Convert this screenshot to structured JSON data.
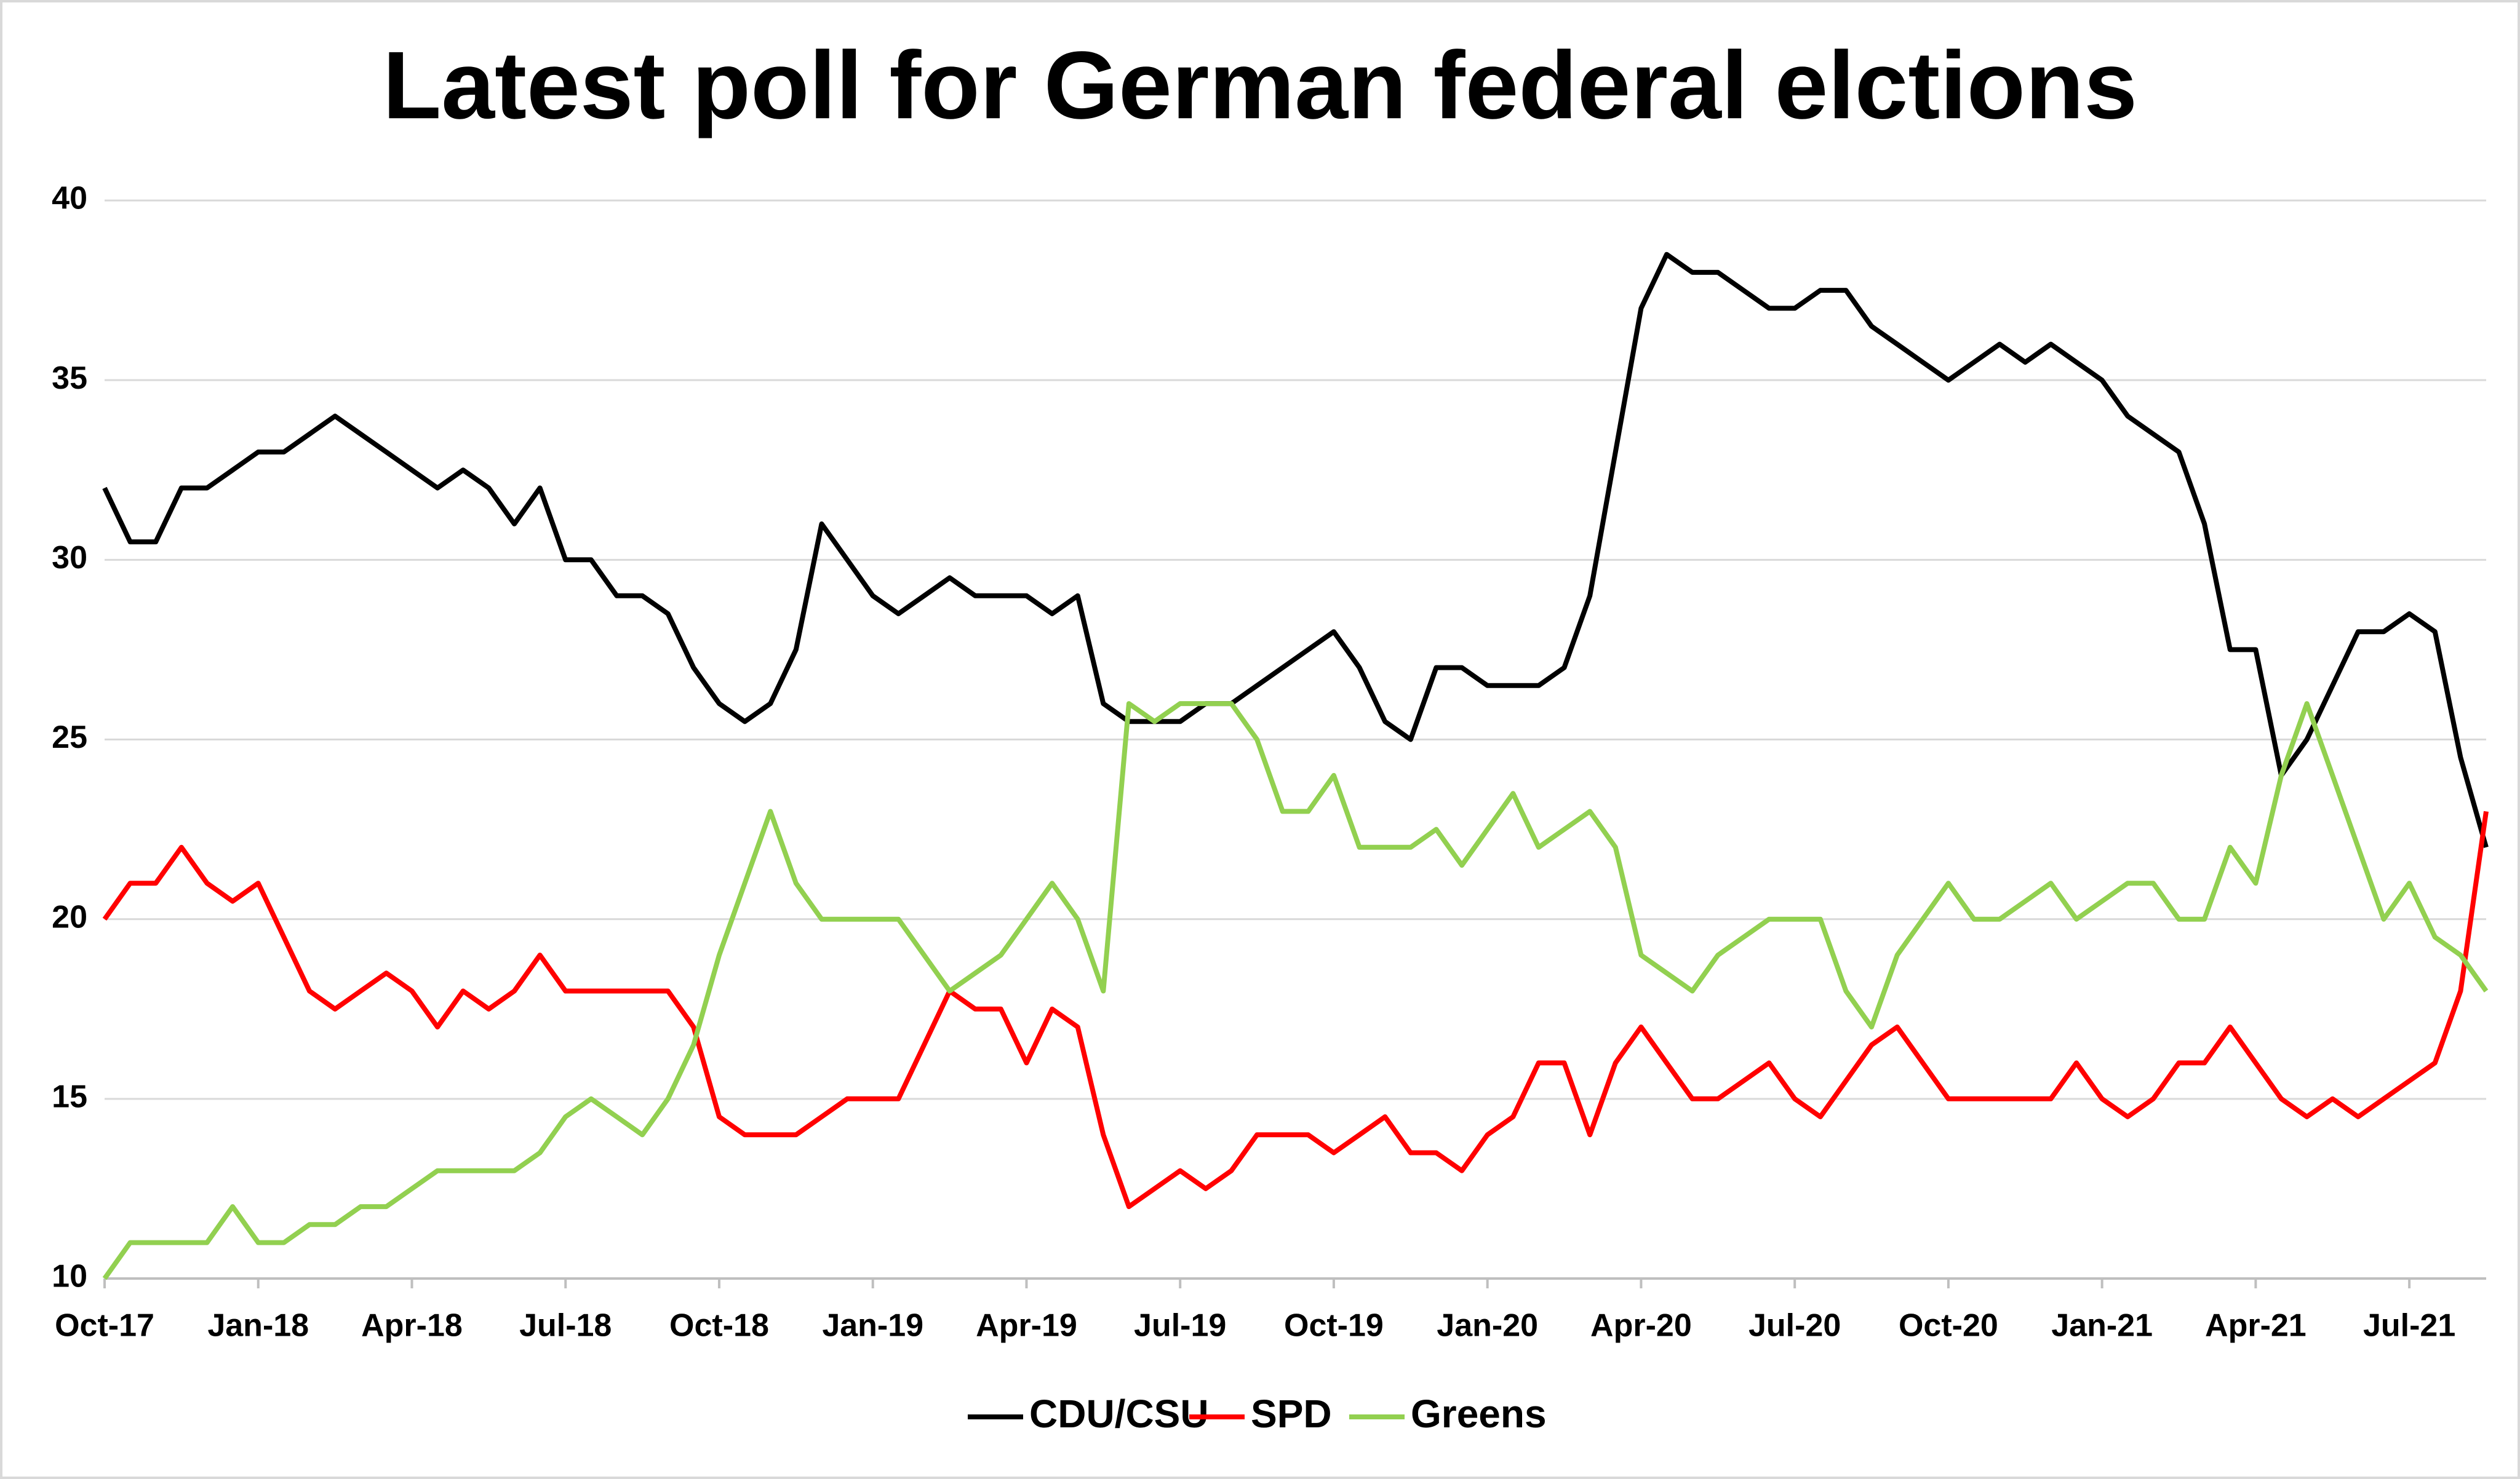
{
  "chart_data": {
    "type": "line",
    "title": "Latest poll for German federal elctions",
    "categories": [
      "Oct-17",
      null,
      null,
      null,
      null,
      null,
      "Jan-18",
      null,
      null,
      null,
      null,
      null,
      "Apr-18",
      null,
      null,
      null,
      null,
      null,
      "Jul-18",
      null,
      null,
      null,
      null,
      null,
      "Oct-18",
      null,
      null,
      null,
      null,
      null,
      "Jan-19",
      null,
      null,
      null,
      null,
      null,
      "Apr-19",
      null,
      null,
      null,
      null,
      null,
      "Jul-19",
      null,
      null,
      null,
      null,
      null,
      "Oct-19",
      null,
      null,
      null,
      null,
      null,
      "Jan-20",
      null,
      null,
      null,
      null,
      null,
      "Apr-20",
      null,
      null,
      null,
      null,
      null,
      "Jul-20",
      null,
      null,
      null,
      null,
      null,
      "Oct-20",
      null,
      null,
      null,
      null,
      null,
      "Jan-21",
      null,
      null,
      null,
      null,
      null,
      "Apr-21",
      null,
      null,
      null,
      null,
      null,
      "Jul-21",
      null,
      null,
      null
    ],
    "series": [
      {
        "name": "CDU/CSU",
        "color": "#000000",
        "values": [
          32,
          30.5,
          30.5,
          32,
          32,
          32.5,
          33,
          33,
          33.5,
          34,
          33.5,
          33,
          32.5,
          32,
          32.5,
          32,
          31,
          32,
          30,
          30,
          29,
          29,
          28.5,
          27,
          26,
          25.5,
          26,
          27.5,
          31,
          30,
          29,
          28.5,
          29,
          29.5,
          29,
          29,
          29,
          28.5,
          29,
          26,
          25.5,
          25.5,
          25.5,
          26,
          26,
          26.5,
          27,
          27.5,
          28,
          27,
          25.5,
          25,
          27,
          27,
          26.5,
          26.5,
          26.5,
          27,
          29,
          33,
          37,
          38.5,
          38,
          38,
          37.5,
          37,
          37,
          37.5,
          37.5,
          36.5,
          36,
          35.5,
          35,
          35.5,
          36,
          35.5,
          36,
          35.5,
          35,
          34,
          33.5,
          33,
          31,
          27.5,
          27.5,
          24,
          25,
          26.5,
          28,
          28,
          28.5,
          28,
          24.5,
          22
        ]
      },
      {
        "name": "SPD",
        "color": "#ff0000",
        "values": [
          20,
          21,
          21,
          22,
          21,
          20.5,
          21,
          19.5,
          18,
          17.5,
          18,
          18.5,
          18,
          17,
          18,
          17.5,
          18,
          19,
          18,
          18,
          18,
          18,
          18,
          17,
          14.5,
          14,
          14,
          14,
          14.5,
          15,
          15,
          15,
          16.5,
          18,
          17.5,
          17.5,
          16,
          17.5,
          17,
          14,
          12,
          12.5,
          13,
          12.5,
          13,
          14,
          14,
          14,
          13.5,
          14,
          14.5,
          13.5,
          13.5,
          13,
          14,
          14.5,
          16,
          16,
          14,
          16,
          17,
          16,
          15,
          15,
          15.5,
          16,
          15,
          14.5,
          15.5,
          16.5,
          17,
          16,
          15,
          15,
          15,
          15,
          15,
          16,
          15,
          14.5,
          15,
          16,
          16,
          17,
          16,
          15,
          14.5,
          15,
          14.5,
          15,
          15.5,
          16,
          18,
          23
        ]
      },
      {
        "name": "Greens",
        "color": "#92d050",
        "values": [
          10,
          11,
          11,
          11,
          11,
          12,
          11,
          11,
          11.5,
          11.5,
          12,
          12,
          12.5,
          13,
          13,
          13,
          13,
          13.5,
          14.5,
          15,
          14.5,
          14,
          15,
          16.5,
          19,
          21,
          23,
          21,
          20,
          20,
          20,
          20,
          19,
          18,
          18.5,
          19,
          20,
          21,
          20,
          18,
          26,
          25.5,
          26,
          26,
          26,
          25,
          23,
          23,
          24,
          22,
          22,
          22,
          22.5,
          21.5,
          22.5,
          23.5,
          22,
          22.5,
          23,
          22,
          19,
          18.5,
          18,
          19,
          19.5,
          20,
          20,
          20,
          18,
          17,
          19,
          20,
          21,
          20,
          20,
          20.5,
          21,
          20,
          20.5,
          21,
          21,
          20,
          20,
          22,
          21,
          24,
          26,
          24,
          22,
          20,
          21,
          19.5,
          19,
          18
        ]
      }
    ],
    "ylim": [
      10,
      40
    ],
    "yticks": [
      10,
      15,
      20,
      25,
      30,
      35,
      40
    ],
    "grid": true,
    "legend": "bottom"
  }
}
